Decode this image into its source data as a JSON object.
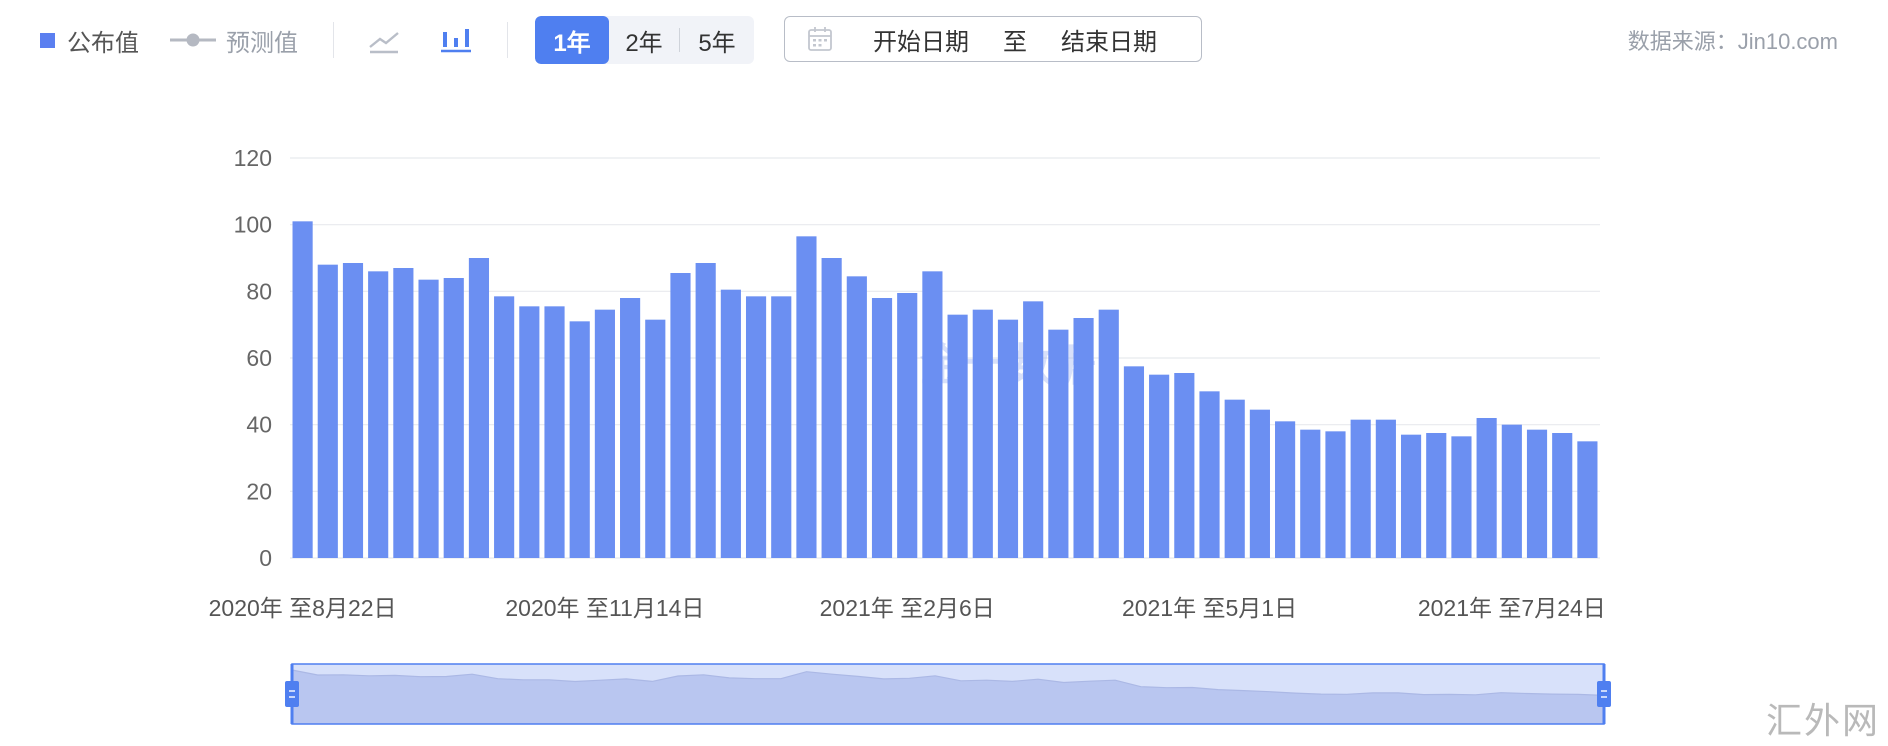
{
  "toolbar": {
    "legend_published": "公布值",
    "legend_forecast": "预测值",
    "range_options": [
      "1年",
      "2年",
      "5年"
    ],
    "active_range": "1年",
    "date_start": "开始日期",
    "date_to": "至",
    "date_end": "结束日期",
    "source": "数据来源：Jin10.com",
    "line_icon": "line-chart-icon",
    "bar_icon": "bar-chart-icon",
    "calendar_icon": "calendar-icon"
  },
  "site_mark": "汇外网",
  "colors": {
    "bar": "#6b8ff2",
    "accent": "#4f7ff0",
    "grid": "#e8eaee",
    "zoom_fill": "#c6d3f8",
    "zoom_area": "#a9b6e6"
  },
  "chart_data": {
    "type": "bar",
    "title": "",
    "xlabel": "",
    "ylabel": "",
    "ylim": [
      0,
      120
    ],
    "yticks": [
      0,
      20,
      40,
      60,
      80,
      100,
      120
    ],
    "grid": true,
    "x_tick_labels": [
      "2020年 至8月22日",
      "2020年 至11月14日",
      "2021年 至2月6日",
      "2021年 至5月1日",
      "2021年 至7月24日"
    ],
    "x_tick_indices": [
      0,
      12,
      24,
      36,
      48
    ],
    "values": [
      101,
      88,
      88.5,
      86,
      87,
      83.5,
      84,
      90,
      78.5,
      75.5,
      75.5,
      71,
      74.5,
      78,
      71.5,
      85.5,
      88.5,
      80.5,
      78.5,
      78.5,
      96.5,
      90,
      84.5,
      78,
      79.5,
      86,
      73,
      74.5,
      71.5,
      77,
      68.5,
      72,
      74.5,
      57.5,
      55,
      55.5,
      50,
      47.5,
      44.5,
      41,
      38.5,
      38,
      41.5,
      41.5,
      37,
      37.5,
      36.5,
      42,
      40,
      38.5,
      37.5,
      35
    ],
    "watermark": "金十数据",
    "zoom_range_percent": [
      0,
      100
    ]
  }
}
